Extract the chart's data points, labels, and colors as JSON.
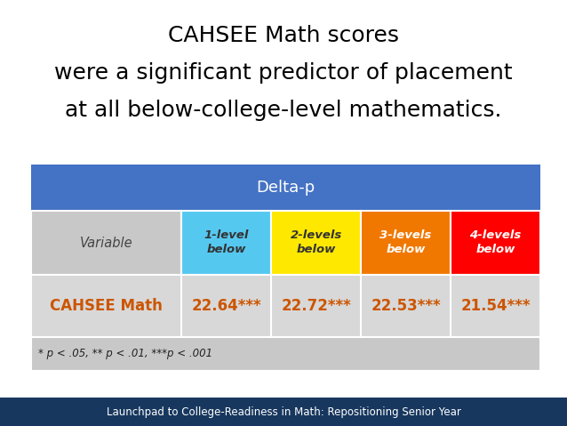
{
  "title_line1": "CAHSEE Math scores",
  "title_line2": "were a significant predictor of placement",
  "title_line3": "at all below-college-level mathematics.",
  "header_label": "Delta-p",
  "header_bg": "#4472C4",
  "header_text_color": "#FFFFFF",
  "col_headers": [
    "1-level\nbelow",
    "2-levels\nbelow",
    "3-levels\nbelow",
    "4-levels\nbelow"
  ],
  "col_header_colors": [
    "#55C8F0",
    "#FFE800",
    "#F07800",
    "#FF0000"
  ],
  "row_label": "CAHSEE Math",
  "row_label_color": "#CC5500",
  "row_values": [
    "22.64***",
    "22.72***",
    "22.53***",
    "21.54***"
  ],
  "row_values_color": "#CC5500",
  "footnote": "* p < .05, ** p < .01, ***p < .001",
  "footer_text": "Launchpad to College-Readiness in Math: Repositioning Senior Year",
  "footer_bg": "#17375E",
  "footer_text_color": "#FFFFFF",
  "table_outer_bg": "#C0C0C0",
  "col_hdr_row_bg": "#C8C8C8",
  "data_row_bg": "#D8D8D8",
  "footnote_bg": "#C8C8C8",
  "bg_color": "#FFFFFF"
}
